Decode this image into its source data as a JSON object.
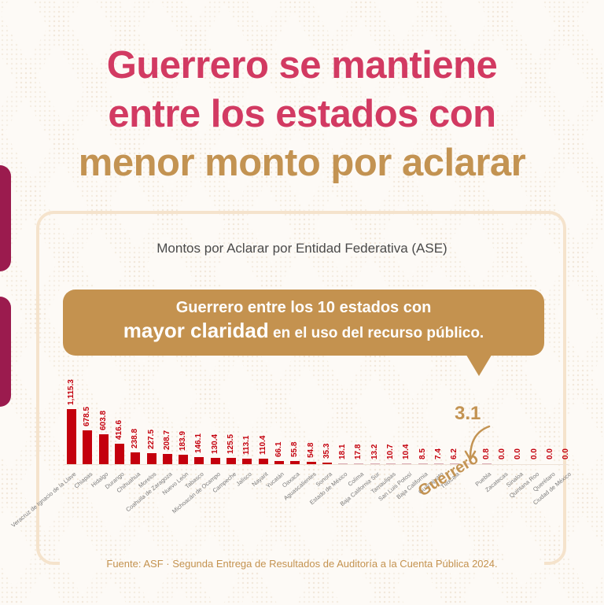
{
  "title": {
    "line1": "Guerrero se mantiene",
    "line2": "entre los estados con",
    "line3": "menor monto por aclarar"
  },
  "colors": {
    "title_pink": "#d23a62",
    "title_gold": "#c39352",
    "bar_red": "#c4000d",
    "callout_gold": "#c4924f",
    "side_tab": "#9b1b4e",
    "panel_border": "#f5e3cc"
  },
  "chart_title": "Montos por Aclarar por Entidad Federativa (ASE)",
  "callout": {
    "line1": "Guerrero entre los 10 estados con",
    "line2_big": "mayor claridad",
    "line2_rest": " en el uso del recurso público."
  },
  "highlight": {
    "state": "Guerrero",
    "value": "3.1"
  },
  "footer": "Fuente: ASF · Segunda Entrega de Resultados de Auditoría a la Cuenta Pública 2024.",
  "chart_data": {
    "type": "bar",
    "title": "Montos por Aclarar por Entidad Federativa (ASE)",
    "xlabel": "",
    "ylabel": "",
    "grid": false,
    "legend": "none",
    "categories": [
      "Veracruz de Ignacio de la Llave",
      "Chiapas",
      "Hidalgo",
      "Durango",
      "Chihuahua",
      "Morelos",
      "Coahuila de Zaragoza",
      "Nuevo León",
      "Tabasco",
      "Michoacán de Ocampo",
      "Campeche",
      "Jalisco",
      "Nayarit",
      "Yucatán",
      "Oaxaca",
      "Aguascalientes",
      "Sonora",
      "Estado de México",
      "Colima",
      "Baja California Sur",
      "Tamaulipas",
      "San Luis Potosí",
      "Baja California",
      "Guanajuato",
      "Tlaxcala",
      "Guerrero",
      "Puebla",
      "Zacatecas",
      "Sinaloa",
      "Quintana Roo",
      "Querétaro",
      "Ciudad de México"
    ],
    "values": [
      1115.3,
      678.5,
      603.8,
      416.6,
      238.8,
      227.5,
      208.7,
      183.9,
      146.1,
      130.4,
      125.5,
      113.1,
      110.4,
      66.1,
      55.8,
      54.8,
      35.3,
      18.1,
      17.8,
      13.2,
      10.7,
      10.4,
      8.5,
      7.4,
      6.2,
      3.1,
      0.8,
      0.0,
      0.0,
      0.0,
      0.0,
      0.0
    ],
    "value_labels": [
      "1,115.3",
      "678.5",
      "603.8",
      "416.6",
      "238.8",
      "227.5",
      "208.7",
      "183.9",
      "146.1",
      "130.4",
      "125.5",
      "113.1",
      "110.4",
      "66.1",
      "55.8",
      "54.8",
      "35.3",
      "18.1",
      "17.8",
      "13.2",
      "10.7",
      "10.4",
      "8.5",
      "7.4",
      "6.2",
      "",
      "0.8",
      "0.0",
      "0.0",
      "0.0",
      "0.0",
      "0.0"
    ],
    "highlighted_index": 25,
    "annotations": [
      "3.1 (Guerrero)"
    ],
    "ylim": [
      0,
      1115.3
    ]
  }
}
